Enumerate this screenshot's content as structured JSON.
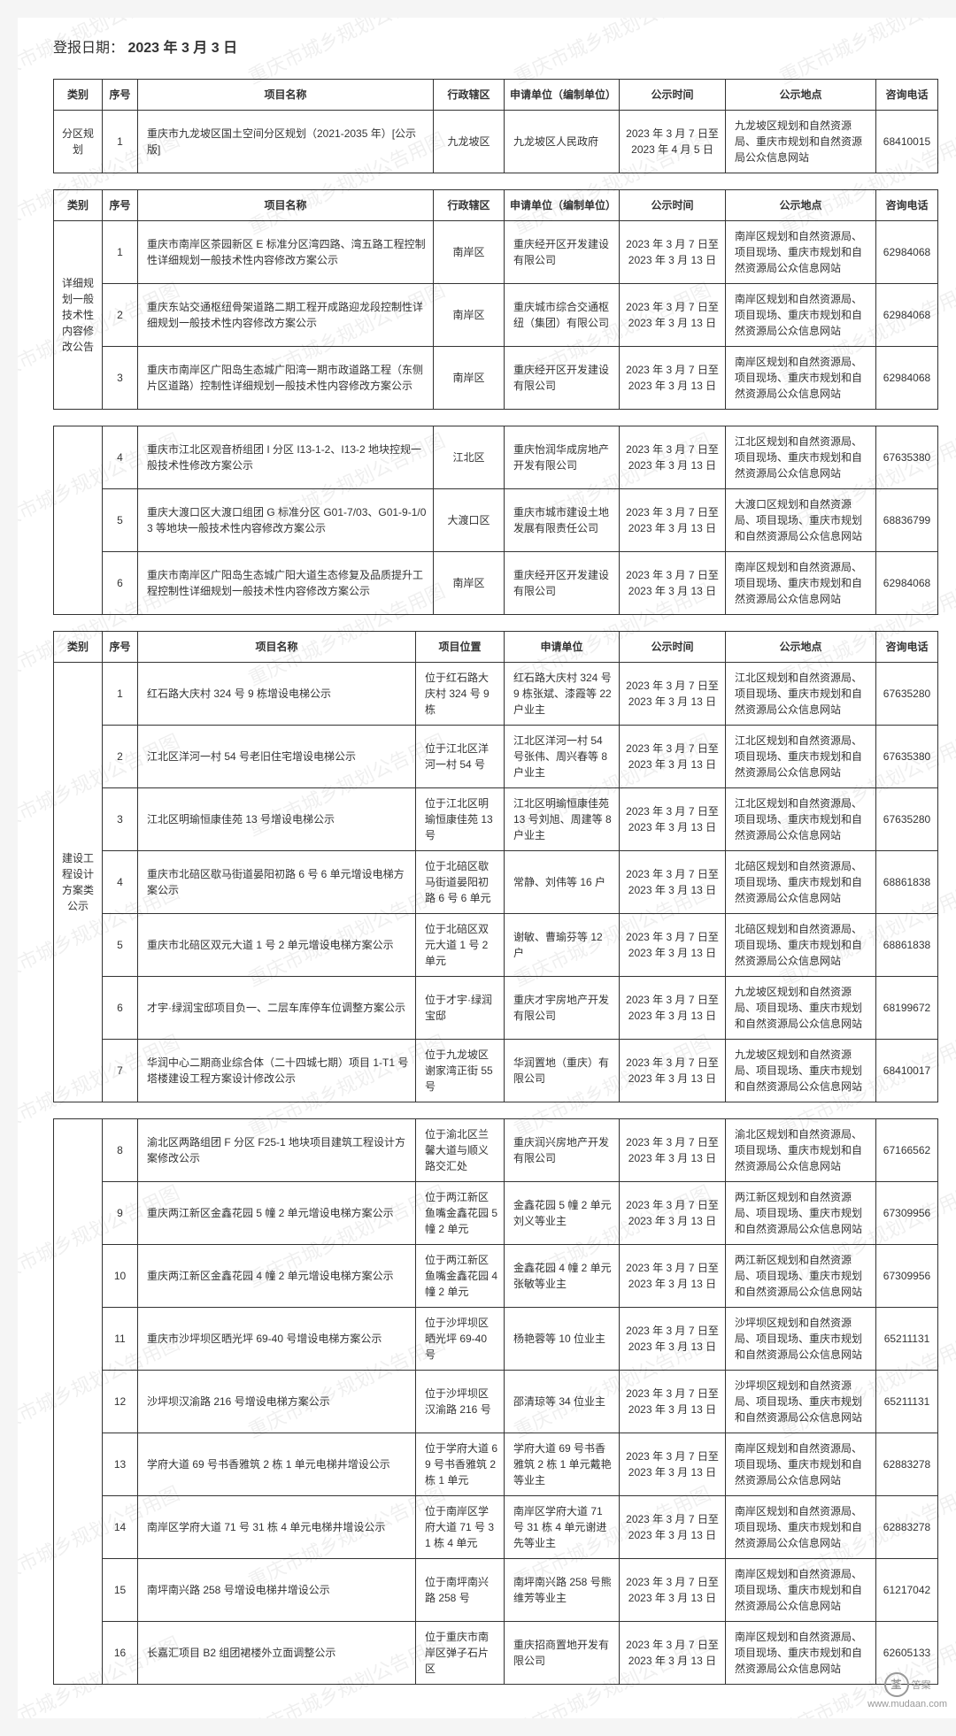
{
  "pub_date_label": "登报日期：",
  "pub_date_value": "2023 年 3 月 3 日",
  "watermark_text": "重庆市城乡规划公告用图",
  "footer": {
    "mark": "答案",
    "url": "www.mudaan.com"
  },
  "headers1": {
    "cat": "类别",
    "idx": "序号",
    "name": "项目名称",
    "dist": "行政辖区",
    "unit": "申请单位（编制单位）",
    "time": "公示时间",
    "place": "公示地点",
    "tel": "咨询电话"
  },
  "headers3": {
    "cat": "类别",
    "idx": "序号",
    "name": "项目名称",
    "loc": "项目位置",
    "unit": "申请单位",
    "time": "公示时间",
    "place": "公示地点",
    "tel": "咨询电话"
  },
  "t1": {
    "cat": "分区规划",
    "rows": [
      {
        "idx": "1",
        "name": "重庆市九龙坡区国土空间分区规划（2021-2035 年）[公示版]",
        "dist": "九龙坡区",
        "unit": "九龙坡区人民政府",
        "time": "2023 年 3 月 7 日至 2023 年 4 月 5 日",
        "place": "九龙坡区规划和自然资源局、重庆市规划和自然资源局公众信息网站",
        "tel": "68410015"
      }
    ]
  },
  "t2": {
    "cat": "详细规划一般技术性内容修改公告",
    "rows": [
      {
        "idx": "1",
        "name": "重庆市南岸区茶园新区 E 标准分区湾四路、湾五路工程控制性详细规划一般技术性内容修改方案公示",
        "dist": "南岸区",
        "unit": "重庆经开区开发建设有限公司",
        "time": "2023 年 3 月 7 日至 2023 年 3 月 13 日",
        "place": "南岸区规划和自然资源局、项目现场、重庆市规划和自然资源局公众信息网站",
        "tel": "62984068"
      },
      {
        "idx": "2",
        "name": "重庆东站交通枢纽骨架道路二期工程开成路迎龙段控制性详细规划一般技术性内容修改方案公示",
        "dist": "南岸区",
        "unit": "重庆城市综合交通枢纽（集团）有限公司",
        "time": "2023 年 3 月 7 日至 2023 年 3 月 13 日",
        "place": "南岸区规划和自然资源局、项目现场、重庆市规划和自然资源局公众信息网站",
        "tel": "62984068"
      },
      {
        "idx": "3",
        "name": "重庆市南岸区广阳岛生态城广阳湾一期市政道路工程（东侧片区道路）控制性详细规划一般技术性内容修改方案公示",
        "dist": "南岸区",
        "unit": "重庆经开区开发建设有限公司",
        "time": "2023 年 3 月 7 日至 2023 年 3 月 13 日",
        "place": "南岸区规划和自然资源局、项目现场、重庆市规划和自然资源局公众信息网站",
        "tel": "62984068"
      }
    ]
  },
  "t2b": {
    "rows": [
      {
        "idx": "4",
        "name": "重庆市江北区观音桥组团 I 分区 I13-1-2、I13-2 地块控规一般技术性修改方案公示",
        "dist": "江北区",
        "unit": "重庆怡润华成房地产开发有限公司",
        "time": "2023 年 3 月 7 日至 2023 年 3 月 13 日",
        "place": "江北区规划和自然资源局、项目现场、重庆市规划和自然资源局公众信息网站",
        "tel": "67635380"
      },
      {
        "idx": "5",
        "name": "重庆大渡口区大渡口组团 G 标准分区 G01-7/03、G01-9-1/03 等地块一般技术性内容修改方案公示",
        "dist": "大渡口区",
        "unit": "重庆市城市建设土地发展有限责任公司",
        "time": "2023 年 3 月 7 日至 2023 年 3 月 13 日",
        "place": "大渡口区规划和自然资源局、项目现场、重庆市规划和自然资源局公众信息网站",
        "tel": "68836799"
      },
      {
        "idx": "6",
        "name": "重庆市南岸区广阳岛生态城广阳大道生态修复及品质提升工程控制性详细规划一般技术性内容修改方案公示",
        "dist": "南岸区",
        "unit": "重庆经开区开发建设有限公司",
        "time": "2023 年 3 月 7 日至 2023 年 3 月 13 日",
        "place": "南岸区规划和自然资源局、项目现场、重庆市规划和自然资源局公众信息网站",
        "tel": "62984068"
      }
    ]
  },
  "t3": {
    "cat": "建设工程设计方案类公示",
    "rows": [
      {
        "idx": "1",
        "name": "红石路大庆村 324 号 9 栋增设电梯公示",
        "loc": "位于红石路大庆村 324 号 9 栋",
        "unit": "红石路大庆村 324 号 9 栋张斌、漆霞等 22 户业主",
        "time": "2023 年 3 月 7 日至 2023 年 3 月 13 日",
        "place": "江北区规划和自然资源局、项目现场、重庆市规划和自然资源局公众信息网站",
        "tel": "67635280"
      },
      {
        "idx": "2",
        "name": "江北区洋河一村 54 号老旧住宅增设电梯公示",
        "loc": "位于江北区洋河一村 54 号",
        "unit": "江北区洋河一村 54 号张伟、周兴春等 8 户业主",
        "time": "2023 年 3 月 7 日至 2023 年 3 月 13 日",
        "place": "江北区规划和自然资源局、项目现场、重庆市规划和自然资源局公众信息网站",
        "tel": "67635380"
      },
      {
        "idx": "3",
        "name": "江北区明瑜恒康佳苑 13 号增设电梯公示",
        "loc": "位于江北区明瑜恒康佳苑 13 号",
        "unit": "江北区明瑜恒康佳苑 13 号刘旭、周建等 8 户业主",
        "time": "2023 年 3 月 7 日至 2023 年 3 月 13 日",
        "place": "江北区规划和自然资源局、项目现场、重庆市规划和自然资源局公众信息网站",
        "tel": "67635280"
      },
      {
        "idx": "4",
        "name": "重庆市北碚区歇马街道晏阳初路 6 号 6 单元增设电梯方案公示",
        "loc": "位于北碚区歇马街道晏阳初路 6 号 6 单元",
        "unit": "常静、刘伟等 16 户",
        "time": "2023 年 3 月 7 日至 2023 年 3 月 13 日",
        "place": "北碚区规划和自然资源局、项目现场、重庆市规划和自然资源局公众信息网站",
        "tel": "68861838"
      },
      {
        "idx": "5",
        "name": "重庆市北碚区双元大道 1 号 2 单元增设电梯方案公示",
        "loc": "位于北碚区双元大道 1 号 2 单元",
        "unit": "谢敏、曹瑜芬等 12 户",
        "time": "2023 年 3 月 7 日至 2023 年 3 月 13 日",
        "place": "北碚区规划和自然资源局、项目现场、重庆市规划和自然资源局公众信息网站",
        "tel": "68861838"
      },
      {
        "idx": "6",
        "name": "才宇·绿润宝邸项目负一、二层车库停车位调整方案公示",
        "loc": "位于才宇·绿润宝邸",
        "unit": "重庆才宇房地产开发有限公司",
        "time": "2023 年 3 月 7 日至 2023 年 3 月 13 日",
        "place": "九龙坡区规划和自然资源局、项目现场、重庆市规划和自然资源局公众信息网站",
        "tel": "68199672"
      },
      {
        "idx": "7",
        "name": "华润中心二期商业综合体（二十四城七期）项目 1-T1 号塔楼建设工程方案设计修改公示",
        "loc": "位于九龙坡区谢家湾正街 55 号",
        "unit": "华润置地（重庆）有限公司",
        "time": "2023 年 3 月 7 日至 2023 年 3 月 13 日",
        "place": "九龙坡区规划和自然资源局、项目现场、重庆市规划和自然资源局公众信息网站",
        "tel": "68410017"
      }
    ]
  },
  "t3b": {
    "rows": [
      {
        "idx": "8",
        "name": "渝北区两路组团 F 分区 F25-1 地块项目建筑工程设计方案修改公示",
        "loc": "位于渝北区兰馨大道与顺义路交汇处",
        "unit": "重庆润兴房地产开发有限公司",
        "time": "2023 年 3 月 7 日至 2023 年 3 月 13 日",
        "place": "渝北区规划和自然资源局、项目现场、重庆市规划和自然资源局公众信息网站",
        "tel": "67166562"
      },
      {
        "idx": "9",
        "name": "重庆两江新区金鑫花园 5 幢 2 单元增设电梯方案公示",
        "loc": "位于两江新区鱼嘴金鑫花园 5 幢 2 单元",
        "unit": "金鑫花园 5 幢 2 单元刘义等业主",
        "time": "2023 年 3 月 7 日至 2023 年 3 月 13 日",
        "place": "两江新区规划和自然资源局、项目现场、重庆市规划和自然资源局公众信息网站",
        "tel": "67309956"
      },
      {
        "idx": "10",
        "name": "重庆两江新区金鑫花园 4 幢 2 单元增设电梯方案公示",
        "loc": "位于两江新区鱼嘴金鑫花园 4 幢 2 单元",
        "unit": "金鑫花园 4 幢 2 单元张敏等业主",
        "time": "2023 年 3 月 7 日至 2023 年 3 月 13 日",
        "place": "两江新区规划和自然资源局、项目现场、重庆市规划和自然资源局公众信息网站",
        "tel": "67309956"
      },
      {
        "idx": "11",
        "name": "重庆市沙坪坝区晒光坪 69-40 号增设电梯方案公示",
        "loc": "位于沙坪坝区晒光坪 69-40 号",
        "unit": "杨艳蓉等 10 位业主",
        "time": "2023 年 3 月 7 日至 2023 年 3 月 13 日",
        "place": "沙坪坝区规划和自然资源局、项目现场、重庆市规划和自然资源局公众信息网站",
        "tel": "65211131"
      },
      {
        "idx": "12",
        "name": "沙坪坝汉渝路 216 号增设电梯方案公示",
        "loc": "位于沙坪坝区汉渝路 216 号",
        "unit": "邵清琼等 34 位业主",
        "time": "2023 年 3 月 7 日至 2023 年 3 月 13 日",
        "place": "沙坪坝区规划和自然资源局、项目现场、重庆市规划和自然资源局公众信息网站",
        "tel": "65211131"
      },
      {
        "idx": "13",
        "name": "学府大道 69 号书香雅筑 2 栋 1 单元电梯井增设公示",
        "loc": "位于学府大道 69 号书香雅筑 2 栋 1 单元",
        "unit": "学府大道 69 号书香雅筑 2 栋 1 单元戴艳等业主",
        "time": "2023 年 3 月 7 日至 2023 年 3 月 13 日",
        "place": "南岸区规划和自然资源局、项目现场、重庆市规划和自然资源局公众信息网站",
        "tel": "62883278"
      },
      {
        "idx": "14",
        "name": "南岸区学府大道 71 号 31 栋 4 单元电梯井增设公示",
        "loc": "位于南岸区学府大道 71 号 31 栋 4 单元",
        "unit": "南岸区学府大道 71 号 31 栋 4 单元谢进先等业主",
        "time": "2023 年 3 月 7 日至 2023 年 3 月 13 日",
        "place": "南岸区规划和自然资源局、项目现场、重庆市规划和自然资源局公众信息网站",
        "tel": "62883278"
      },
      {
        "idx": "15",
        "name": "南坪南兴路 258 号增设电梯井增设公示",
        "loc": "位于南坪南兴路 258 号",
        "unit": "南坪南兴路 258 号熊维芳等业主",
        "time": "2023 年 3 月 7 日至 2023 年 3 月 13 日",
        "place": "南岸区规划和自然资源局、项目现场、重庆市规划和自然资源局公众信息网站",
        "tel": "61217042"
      },
      {
        "idx": "16",
        "name": "长嘉汇项目 B2 组团裙楼外立面调整公示",
        "loc": "位于重庆市南岸区弹子石片区",
        "unit": "重庆招商置地开发有限公司",
        "time": "2023 年 3 月 7 日至 2023 年 3 月 13 日",
        "place": "南岸区规划和自然资源局、项目现场、重庆市规划和自然资源局公众信息网站",
        "tel": "62605133"
      }
    ]
  }
}
